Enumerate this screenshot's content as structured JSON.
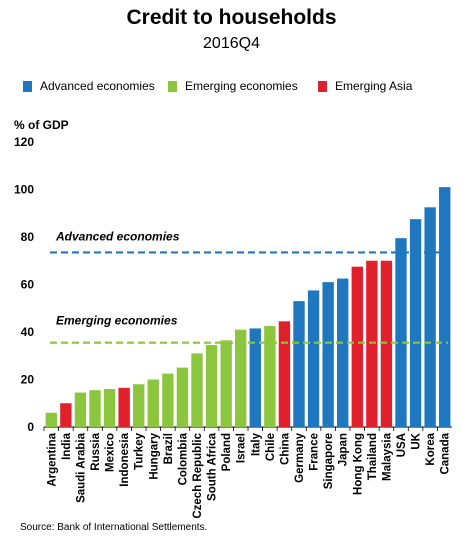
{
  "chart_data": {
    "type": "bar",
    "title": "Credit to households",
    "subtitle": "2016Q4",
    "ylabel": "% of GDP",
    "ylim": [
      0,
      120
    ],
    "yticks": [
      0,
      20,
      40,
      60,
      80,
      100,
      120
    ],
    "grid": false,
    "legend_position": "top",
    "groups": [
      {
        "name": "Advanced economies",
        "color": "#1f77c0"
      },
      {
        "name": "Emerging economies",
        "color": "#8cc63f"
      },
      {
        "name": "Emerging Asia",
        "color": "#e0202a"
      }
    ],
    "categories": [
      "Argentina",
      "India",
      "Saudi Arabia",
      "Russia",
      "Mexico",
      "Indonesia",
      "Turkey",
      "Hungary",
      "Brazil",
      "Colombia",
      "Czech Republic",
      "South Africa",
      "Poland",
      "Israel",
      "Italy",
      "Chile",
      "China",
      "Germany",
      "France",
      "Singapore",
      "Japan",
      "Hong Kong",
      "Thailand",
      "Malaysia",
      "USA",
      "UK",
      "Korea",
      "Canada"
    ],
    "values": [
      6,
      10,
      14.5,
      15.5,
      16,
      16.5,
      18,
      20,
      22.5,
      25,
      31,
      34.5,
      36.5,
      41,
      41.5,
      42.5,
      44.5,
      53,
      57.5,
      61,
      62.5,
      67.5,
      70,
      70,
      79.5,
      87.5,
      92.5,
      101
    ],
    "groups_by_category": [
      "Emerging economies",
      "Emerging Asia",
      "Emerging economies",
      "Emerging economies",
      "Emerging economies",
      "Emerging Asia",
      "Emerging economies",
      "Emerging economies",
      "Emerging economies",
      "Emerging economies",
      "Emerging economies",
      "Emerging economies",
      "Emerging economies",
      "Emerging economies",
      "Advanced economies",
      "Emerging economies",
      "Emerging Asia",
      "Advanced economies",
      "Advanced economies",
      "Advanced economies",
      "Advanced economies",
      "Emerging Asia",
      "Emerging Asia",
      "Emerging Asia",
      "Advanced economies",
      "Advanced economies",
      "Advanced economies",
      "Advanced economies"
    ],
    "reference_lines": [
      {
        "label": "Advanced economies",
        "value": 73.5,
        "color": "#1f77c0",
        "style": "dashed"
      },
      {
        "label": "Emerging economies",
        "value": 35.5,
        "color": "#8cc63f",
        "style": "dashed"
      }
    ]
  },
  "source": "Source: Bank of International Settlements."
}
